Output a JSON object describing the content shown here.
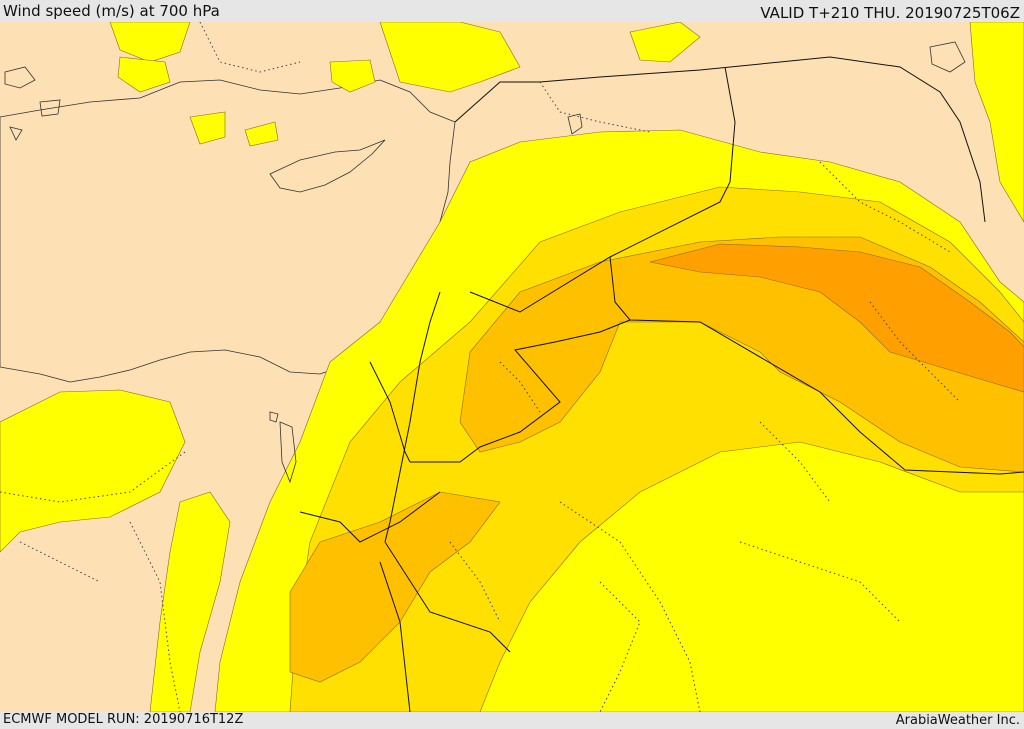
{
  "header": {
    "title": "Wind speed (m/s) at 700 hPa",
    "valid": "VALID T+210 THU. 20190725T06Z"
  },
  "footer": {
    "model_run": "ECMWF MODEL RUN: 20190716T12Z",
    "credit": "ArabiaWeather Inc."
  },
  "legend_colors": {
    "land": "#fde0b4",
    "sea": "#ffffff",
    "band1": "#ffff00",
    "band2": "#ffe000",
    "band3": "#ffc000",
    "band4": "#ffa000"
  }
}
